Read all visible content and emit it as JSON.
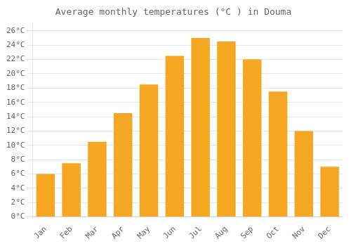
{
  "chart_data": {
    "type": "bar",
    "title": "Average monthly temperatures (°C ) in Douma",
    "categories": [
      "Jan",
      "Feb",
      "Mar",
      "Apr",
      "May",
      "Jun",
      "Jul",
      "Aug",
      "Sep",
      "Oct",
      "Nov",
      "Dec"
    ],
    "values": [
      6.0,
      7.5,
      10.5,
      14.5,
      18.5,
      22.5,
      25.0,
      24.5,
      22.0,
      17.5,
      12.0,
      7.0
    ],
    "color": "#F5A623",
    "ylim": [
      0,
      27
    ],
    "yticks": [
      {
        "value": 0,
        "label": "0°C"
      },
      {
        "value": 2,
        "label": "2°C"
      },
      {
        "value": 4,
        "label": "4°C"
      },
      {
        "value": 6,
        "label": "6°C"
      },
      {
        "value": 8,
        "label": "8°C"
      },
      {
        "value": 10,
        "label": "10°C"
      },
      {
        "value": 12,
        "label": "12°C"
      },
      {
        "value": 14,
        "label": "14°C"
      },
      {
        "value": 16,
        "label": "16°C"
      },
      {
        "value": 18,
        "label": "18°C"
      },
      {
        "value": 20,
        "label": "20°C"
      },
      {
        "value": 22,
        "label": "22°C"
      },
      {
        "value": 24,
        "label": "24°C"
      },
      {
        "value": 26,
        "label": "26°C"
      }
    ],
    "grid": true
  }
}
